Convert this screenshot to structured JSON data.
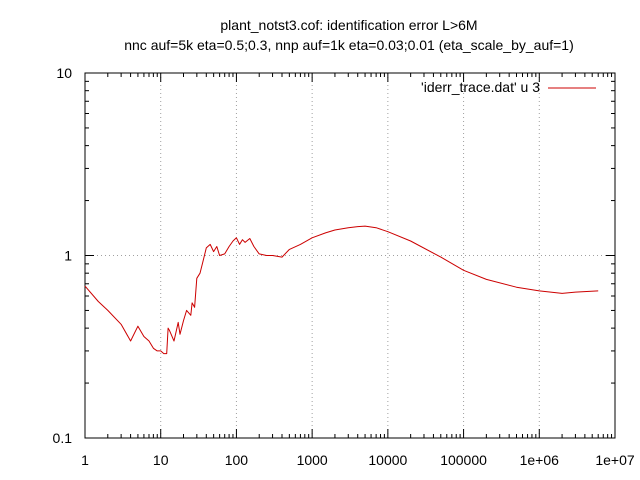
{
  "chart_data": {
    "type": "line",
    "title": "plant_notst3.cof: identification error L>6M",
    "subtitle": "nnc auf=5k eta=0.5;0.3, nnp auf=1k eta=0.03;0.01 (eta_scale_by_auf=1)",
    "xlabel": "",
    "ylabel": "",
    "x_scale": "log",
    "y_scale": "log",
    "xlim": [
      1,
      10000000
    ],
    "ylim": [
      0.1,
      10
    ],
    "x_ticks": [
      1,
      10,
      100,
      1000,
      10000,
      100000,
      1000000,
      10000000
    ],
    "x_tick_labels": [
      "1",
      "10",
      "100",
      "1000",
      "10000",
      "100000",
      "1e+06",
      "1e+07"
    ],
    "y_ticks": [
      0.1,
      1,
      10
    ],
    "y_tick_labels": [
      "0.1",
      "1",
      "10"
    ],
    "grid": true,
    "legend_position": "top-right",
    "series": [
      {
        "name": "'iderr_trace.dat' u 3",
        "color": "#cc0000",
        "x": [
          1,
          1.5,
          2,
          3,
          4,
          5,
          6,
          7,
          8,
          9,
          10,
          11,
          12,
          12.5,
          13,
          15,
          17,
          18,
          20,
          22,
          25,
          26,
          28,
          30,
          33,
          36,
          40,
          45,
          50,
          55,
          60,
          70,
          80,
          90,
          100,
          110,
          120,
          130,
          150,
          170,
          200,
          250,
          300,
          400,
          500,
          700,
          1000,
          1500,
          2000,
          3000,
          4000,
          5000,
          7000,
          10000,
          20000,
          50000,
          100000,
          200000,
          500000,
          1000000,
          2000000,
          3000000,
          6000000
        ],
        "y": [
          0.68,
          0.56,
          0.5,
          0.42,
          0.34,
          0.41,
          0.36,
          0.34,
          0.31,
          0.3,
          0.3,
          0.29,
          0.29,
          0.4,
          0.39,
          0.34,
          0.43,
          0.37,
          0.44,
          0.5,
          0.47,
          0.55,
          0.52,
          0.75,
          0.8,
          0.92,
          1.1,
          1.15,
          1.05,
          1.12,
          1.0,
          1.02,
          1.12,
          1.2,
          1.25,
          1.15,
          1.22,
          1.18,
          1.24,
          1.12,
          1.02,
          1.0,
          1.0,
          0.98,
          1.08,
          1.15,
          1.25,
          1.33,
          1.38,
          1.42,
          1.44,
          1.45,
          1.42,
          1.35,
          1.2,
          0.98,
          0.83,
          0.74,
          0.67,
          0.64,
          0.62,
          0.63,
          0.64
        ]
      }
    ]
  }
}
